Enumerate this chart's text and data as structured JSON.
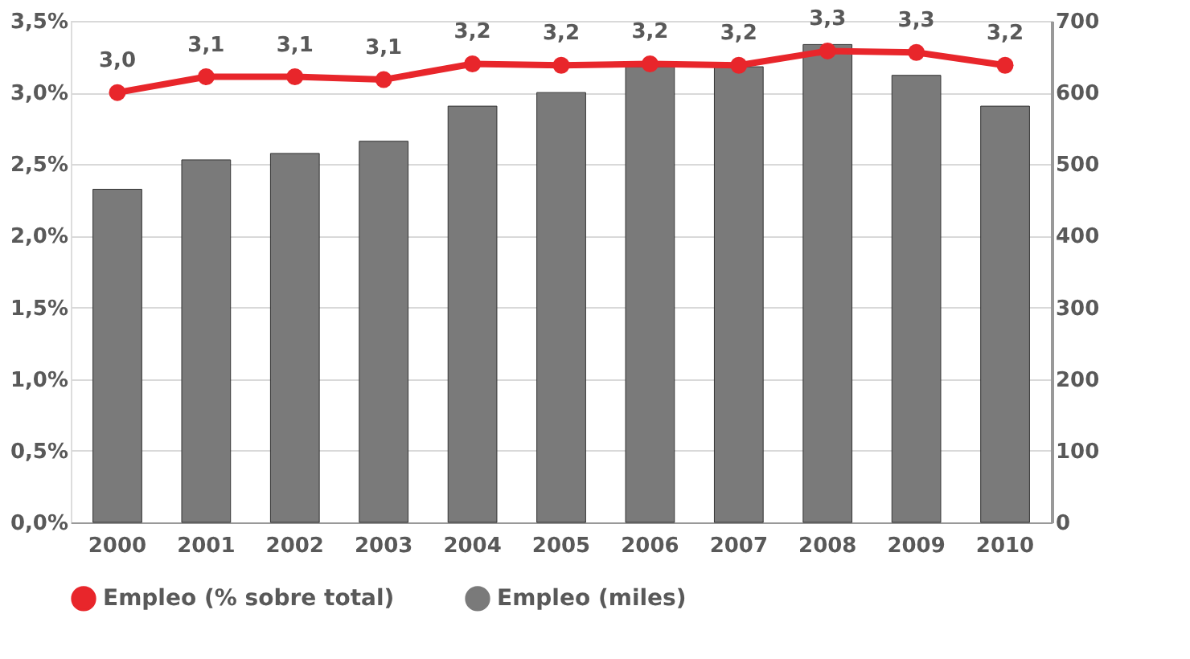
{
  "chart_data": {
    "type": "bar",
    "categories": [
      "2000",
      "2001",
      "2002",
      "2003",
      "2004",
      "2005",
      "2006",
      "2007",
      "2008",
      "2009",
      "2010"
    ],
    "series": [
      {
        "name": "Empleo (% sobre total)",
        "type": "line",
        "color": "#e8262b",
        "axis": "y",
        "marker": "circle",
        "values": [
          3.0,
          3.11,
          3.11,
          3.09,
          3.2,
          3.19,
          3.2,
          3.19,
          3.29,
          3.28,
          3.19
        ],
        "value_labels": [
          "3,0",
          "3,1",
          "3,1",
          "3,1",
          "3,2",
          "3,2",
          "3,2",
          "3,2",
          "3,3",
          "3,3",
          "3,2"
        ]
      },
      {
        "name": "Empleo (miles)",
        "color": "#7a7a7a",
        "axis": "y2",
        "values": [
          465,
          506,
          515,
          532,
          581,
          600,
          636,
          636,
          667,
          624,
          581
        ]
      }
    ],
    "ylim": [
      0,
      3.5
    ],
    "yticks": [
      {
        "value": 0,
        "label": "0,0%"
      },
      {
        "value": 0.5,
        "label": "0,5%"
      },
      {
        "value": 1,
        "label": "1,0%"
      },
      {
        "value": 1.5,
        "label": "1,5%"
      },
      {
        "value": 2,
        "label": "2,0%"
      },
      {
        "value": 2.5,
        "label": "2,5%"
      },
      {
        "value": 3,
        "label": "3,0%"
      },
      {
        "value": 3.5,
        "label": "3,5%"
      }
    ],
    "y2lim": [
      0,
      700
    ],
    "y2ticks": [
      0,
      100,
      200,
      300,
      400,
      500,
      600,
      700
    ],
    "grid": "y",
    "legend": "bottom"
  }
}
